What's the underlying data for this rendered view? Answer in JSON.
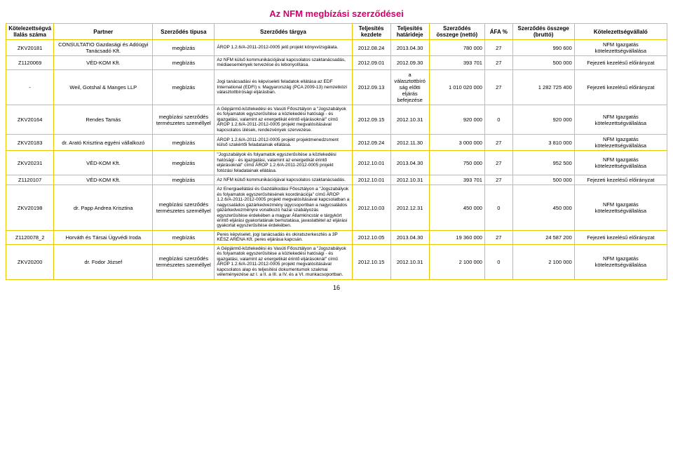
{
  "title": "Az NFM megbízási szerződései",
  "page_number": "16",
  "columns": [
    "Kötelezettségvállalás száma",
    "Partner",
    "Szerződés típusa",
    "Szerződés tárgya",
    "Teljesítés kezdete",
    "Teljesítés határideje",
    "Szerződés összege (nettó)",
    "ÁFA %",
    "Szerződés összege (bruttó)",
    "Kötelezettségvállaló"
  ],
  "rows": [
    {
      "c1": "ZKV20181",
      "c2": "CONSULTATIO Gazdasági és Adóügyi Tanácsadó Kft.",
      "c3": "megbízás",
      "c4": "ÁROP 1.2.6/A-2011-2012-0005 jelű projekt könyvvizsgálata.",
      "c5": "2012.08.24",
      "c6": "2013.04.30",
      "c7": "780 000",
      "c8": "27",
      "c9": "990 600",
      "c10": "NFM Igazgatás kötelezettségvállalása"
    },
    {
      "c1": "Z1120069",
      "c2": "VÉD-KOM Kft.",
      "c3": "megbízás",
      "c4": "Az NFM külső kommunikációjával kapcsolatos szaktanácsadás, médiaesemények tervezése és lebonyolítása.",
      "c5": "2012.09.01",
      "c6": "2012.09.30",
      "c7": "393 701",
      "c8": "27",
      "c9": "500 000",
      "c10": "Fejezeti kezelésű előirányzat"
    },
    {
      "c1": "-",
      "c2": "Weil, Gotshal & Manges LLP",
      "c3": "megbízás",
      "c4": "Jogi tanácsadási és képviseleti feladatok ellátása az EDF International (EDFI) v. Magyarország (PCA 2009-13) nemzetközi választottbírósági eljárásban.",
      "c5": "2012.09.13",
      "c6": "a választottbíróság előtti eljárás befejezése",
      "c7": "1 010 020 000",
      "c8": "27",
      "c9": "1 282 725 400",
      "c10": "Fejezeti kezelésű előirányzat"
    },
    {
      "c1": "ZKV20164",
      "c2": "Rendes Tamás",
      "c3": "megbízási szerződés természetes személlyel",
      "c4": "A Gépjármű-közlekedési és Vasúti Főosztályon a \"Jogszabályok és folyamatok egyszerűsítése a közlekedési hatósági - és igazgatási, valamint az energetikát érintő eljárásoknál\" című ÁROP 1.2.6/A-2011-2012-0005 projekt megvalósításával kapcsolatos ülések, rendezvények szervezése.",
      "c5": "2012.09.15",
      "c6": "2012.10.31",
      "c7": "920 000",
      "c8": "0",
      "c9": "920 000",
      "c10": "NFM Igazgatás kötelezettségvállalása"
    },
    {
      "c1": "ZKV20183",
      "c2": "dr. Arató Krisztina egyéni vállalkozó",
      "c3": "megbízás",
      "c4": "ÁROP 1.2.6/A-2011-2012-0005 projekt projektmenedzsment külső szakértői feladatainak ellátása.",
      "c5": "2012.09.24",
      "c6": "2012.11.30",
      "c7": "3 000 000",
      "c8": "27",
      "c9": "3 810 000",
      "c10": "NFM Igazgatás kötelezettségvállalása"
    },
    {
      "c1": "ZKV20231",
      "c2": "VÉD-KOM Kft.",
      "c3": "megbízás",
      "c4": "\"Jogszabályok és folyamatok egyszerűsítése a közlekedési hatósági - és igazgatási, valamint az energetikát érintő eljárásoknál\" című ÁROP 1.2.6/A-2011-2012-0005 projekt fotózási feladatainak ellátása.",
      "c5": "2012.10.01",
      "c6": "2013.04.30",
      "c7": "750 000",
      "c8": "27",
      "c9": "952 500",
      "c10": "NFM Igazgatás kötelezettségvállalása"
    },
    {
      "c1": "Z1120107",
      "c2": "VÉD-KOM Kft.",
      "c3": "megbízás",
      "c4": "Az NFM külső kommunikációjával kapcsolatos szaktanácsadás.",
      "c5": "2012.10.01",
      "c6": "2012.10.31",
      "c7": "393 701",
      "c8": "27",
      "c9": "500 000",
      "c10": "Fejezeti kezelésű előirányzat"
    },
    {
      "c1": "ZKV20198",
      "c2": "dr. Papp Andrea Krisztina",
      "c3": "megbízási szerződés természetes személlyel",
      "c4": "Az Energiaellátási és Gazdálkodási Főosztályon a \"Jogszabályok és folyamatok egyszerűsítésének koordinációja\" című ÁROP 1.2.6/A-2011-2012-0005 projekt megvalósításával kapcsolatban a nagycsaládos gázárkedvezmény ügycsoportban a nagycsaládos gázárkedvezményre vonatkozó hazai szabályozás egyszerűsítése érdekében a magyar Államkincstár e tárgykört érintő eljárási gyakorlatának bemutatása, javaslattétel az eljárási gyakorlat egyszerűsítése érdekében.",
      "c5": "2012.10.03",
      "c6": "2012.12.31",
      "c7": "450 000",
      "c8": "0",
      "c9": "450 000",
      "c10": "NFM Igazgatás kötelezettségvállalása"
    },
    {
      "c1": "Z1120078_2",
      "c2": "Horváth és Társai Ügyvédi Iroda",
      "c3": "megbízás",
      "c4": "Peres képviselet, jogi tanácsadás és okiratszerkesztés a 3P KÉSZ ARÉNA Kft. peres eljárása kapcsán.",
      "c5": "2012.10.05",
      "c6": "2013.04.30",
      "c7": "19 360 000",
      "c8": "27",
      "c9": "24 587 200",
      "c10": "Fejezeti kezelésű előirányzat"
    },
    {
      "c1": "ZKV20200",
      "c2": "dr. Fodor József",
      "c3": "megbízási szerződés természetes személlyel",
      "c4": "A Gépjármű-közlekedési és Vasúti Főosztályon a \"Jogszabályok és folyamatok egyszerűsítése a közlekedési hatósági - és igazgatási, valamint az energetikát érintő eljárásoknál\" című ÁROP 1.2.6/A-2011-2012-0005 projekt megvalósításával kapcsolatos alap és teljesítési dokumentumok szakmai véleményezése az I. a II. a III. a IV. és a VI. munkacsoportban.",
      "c5": "2012.10.15",
      "c6": "2012.10.31",
      "c7": "2 100 000",
      "c8": "0",
      "c9": "2 100 000",
      "c10": "NFM Igazgatás kötelezettségvállalása"
    }
  ]
}
